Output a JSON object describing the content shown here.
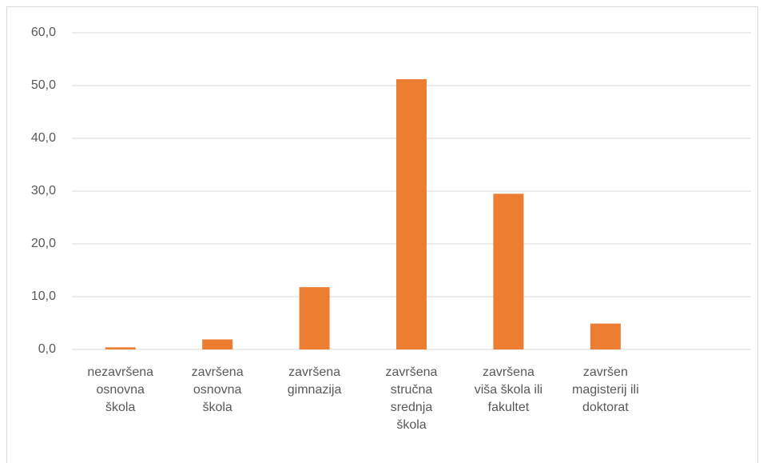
{
  "chart_data": {
    "type": "bar",
    "categories": [
      "nezavršena\nosnovna\nškola",
      "završena\nosnovna\nškola",
      "završena\ngimnazija",
      "završena\nstručna\nsrednja\nškola",
      "završena\nviša škola ili\nfakultet",
      "završen\nmagisterij ili\ndoktorat",
      null
    ],
    "values": [
      0.4,
      1.9,
      11.8,
      51.2,
      29.5,
      4.9,
      null
    ],
    "color": "#ed7d31",
    "ylim": [
      0,
      60
    ],
    "yticks": [
      {
        "value": 0,
        "label": "0,0"
      },
      {
        "value": 10,
        "label": "10,0"
      },
      {
        "value": 20,
        "label": "20,0"
      },
      {
        "value": 30,
        "label": "30,0"
      },
      {
        "value": 40,
        "label": "40,0"
      },
      {
        "value": 50,
        "label": "50,0"
      },
      {
        "value": 60,
        "label": "60,0"
      }
    ],
    "grid": true
  }
}
